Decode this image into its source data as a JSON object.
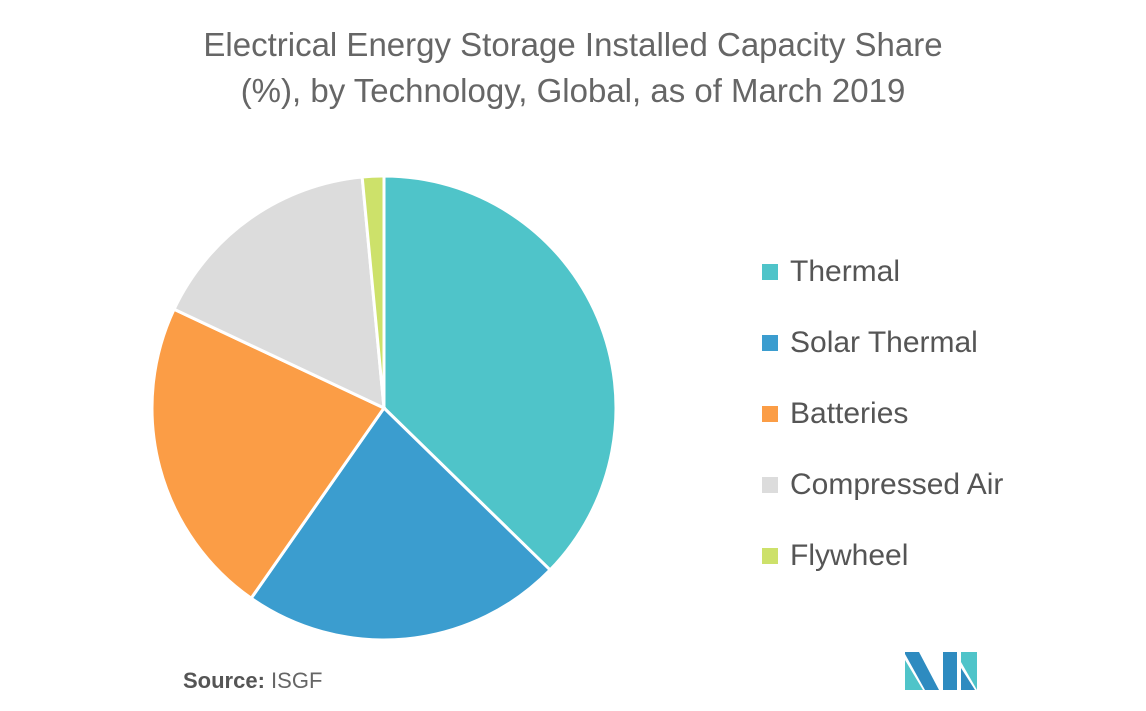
{
  "chart_data": {
    "type": "pie",
    "title": "Electrical Energy Storage Installed Capacity Share (%), by Technology, Global, as of March 2019",
    "title_lines": [
      "Electrical Energy Storage Installed Capacity Share",
      "(%), by Technology, Global, as of March 2019"
    ],
    "categories": [
      "Thermal",
      "Solar Thermal",
      "Batteries",
      "Compressed Air",
      "Flywheel"
    ],
    "values": [
      37.3,
      22.4,
      22.3,
      16.5,
      1.5
    ],
    "colors": [
      "#4fc4c9",
      "#3b9dcf",
      "#fb9d46",
      "#dcdcdc",
      "#cde16a"
    ],
    "legend_position": "right",
    "start": "12 o'clock, clockwise"
  },
  "source": {
    "label": "Source:",
    "value": "ISGF"
  },
  "logo": {
    "colors": [
      "#2e8bc0",
      "#4fc4c9"
    ]
  }
}
